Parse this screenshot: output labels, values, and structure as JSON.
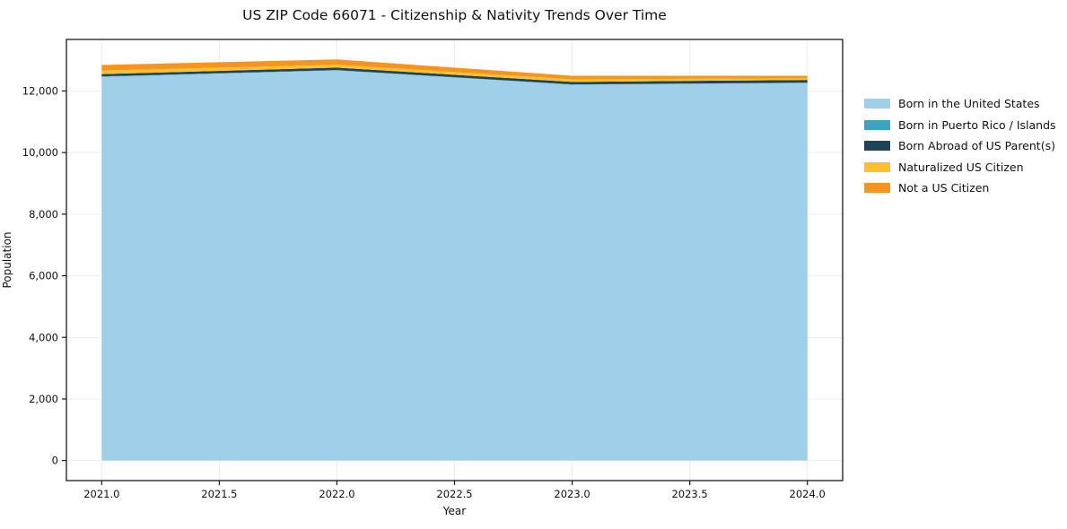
{
  "chart": {
    "title": "US ZIP Code 66071 - Citizenship & Nativity Trends Over Time",
    "xlabel": "Year",
    "ylabel": "Population"
  },
  "chart_data": {
    "type": "area",
    "stacked": true,
    "title": "US ZIP Code 66071 - Citizenship & Nativity Trends Over Time",
    "xlabel": "Year",
    "ylabel": "Population",
    "x": [
      2021,
      2022,
      2023,
      2024
    ],
    "series": [
      {
        "name": "Born in the United States",
        "color": "#A0D0E8",
        "values": [
          12460,
          12670,
          12205,
          12260
        ]
      },
      {
        "name": "Born in Puerto Rico / Islands",
        "color": "#3BA3BD",
        "values": [
          15,
          10,
          10,
          10
        ]
      },
      {
        "name": "Born Abroad of US Parent(s)",
        "color": "#1F4455",
        "values": [
          75,
          80,
          80,
          90
        ]
      },
      {
        "name": "Naturalized US Citizen",
        "color": "#FCC22C",
        "values": [
          115,
          90,
          85,
          55
        ]
      },
      {
        "name": "Not a US Citizen",
        "color": "#F79420",
        "values": [
          180,
          175,
          115,
          80
        ]
      }
    ],
    "xlim": [
      2020.85,
      2024.15
    ],
    "ylim": [
      -651,
      13674
    ],
    "x_ticks": [
      2021.0,
      2021.5,
      2022.0,
      2022.5,
      2023.0,
      2023.5,
      2024.0
    ],
    "x_tick_labels": [
      "2021.0",
      "2021.5",
      "2022.0",
      "2022.5",
      "2023.0",
      "2023.5",
      "2024.0"
    ],
    "y_ticks": [
      0,
      2000,
      4000,
      6000,
      8000,
      10000,
      12000
    ],
    "y_tick_labels": [
      "0",
      "2,000",
      "4,000",
      "6,000",
      "8,000",
      "10,000",
      "12,000"
    ],
    "grid": true,
    "grid_color": "#ececec",
    "frame_color": "#1a1a1a",
    "legend_position": "outside-right"
  }
}
